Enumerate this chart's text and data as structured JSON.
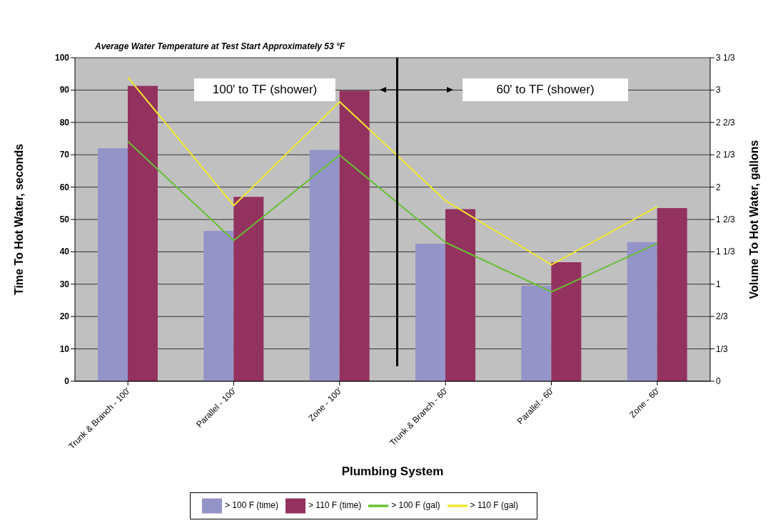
{
  "chart_data": {
    "type": "bar",
    "title": "Average Water Temperature at Test Start Approximately 53 °F",
    "xlabel": "Plumbing System",
    "ylabel": "Time To Hot Water, seconds",
    "y2label": "Volume To Hot Water, gallons",
    "categories": [
      "Trunk & Branch - 100'",
      "Parallel - 100'",
      "Zone - 100'",
      "Trunk & Branch - 60'",
      "Parallel - 60'",
      "Zone - 60'"
    ],
    "series": [
      {
        "name": "> 100 F (time)",
        "color": "#9494c8",
        "values": [
          72,
          46.5,
          71.5,
          42.5,
          29.5,
          43
        ]
      },
      {
        "name": "> 110 F (time)",
        "color": "#94325f",
        "values": [
          91.3,
          57,
          89.8,
          53.2,
          36.8,
          53.5
        ]
      },
      {
        "name": "> 100 F (gal)",
        "type": "line",
        "axis": "y2",
        "color": "#66c033",
        "values": [
          2.47,
          1.45,
          2.33,
          1.43,
          0.92,
          1.42
        ]
      },
      {
        "name": "> 110 F (gal)",
        "type": "line",
        "axis": "y2",
        "color": "#f0e830",
        "values": [
          3.13,
          1.81,
          2.88,
          1.86,
          1.2,
          1.8
        ]
      }
    ],
    "ylim": [
      0,
      100
    ],
    "yticks": [
      0,
      10,
      20,
      30,
      40,
      50,
      60,
      70,
      80,
      90,
      100
    ],
    "y2lim": [
      0,
      3.3333
    ],
    "y2ticks": [
      0,
      {
        "value": 0.3333,
        "label": "1/3"
      },
      {
        "value": 0.6667,
        "label": "2/3"
      },
      1,
      {
        "value": 1.3333,
        "label": "1 1/3"
      },
      {
        "value": 1.6667,
        "label": "1 2/3"
      },
      2,
      {
        "value": 2.3333,
        "label": "2 1/3"
      },
      {
        "value": 2.6667,
        "label": "2 2/3"
      },
      3,
      {
        "value": 3.3333,
        "label": "3 1/3"
      }
    ],
    "annotations": [
      "100' to TF (shower)",
      "60' to TF (shower)"
    ],
    "grid": "y",
    "legend": "bottom"
  }
}
